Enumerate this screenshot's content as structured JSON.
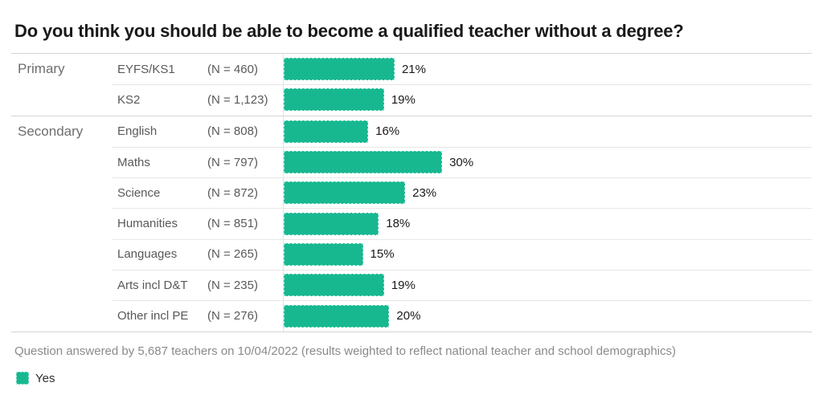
{
  "title": "Do you think you should be able to become a qualified teacher without a degree?",
  "footer": "Question answered by 5,687 teachers on 10/04/2022 (results weighted to reflect national teacher and school demographics)",
  "legend": [
    {
      "label": "Yes",
      "color": "#17b890"
    }
  ],
  "chart_data": {
    "type": "bar",
    "orientation": "horizontal",
    "title": "Do you think you should be able to become a qualified teacher without a degree?",
    "series_name": "Yes",
    "unit": "%",
    "xlim": [
      0,
      100
    ],
    "grid": false,
    "legend_position": "bottom-left",
    "colors": {
      "bar": "#17b890"
    },
    "groups": [
      {
        "group": "Primary",
        "rows": [
          {
            "label": "EYFS/KS1",
            "n_label": "(N = 460)",
            "value": 21,
            "value_label": "21%"
          },
          {
            "label": "KS2",
            "n_label": "(N = 1,123)",
            "value": 19,
            "value_label": "19%"
          }
        ]
      },
      {
        "group": "Secondary",
        "rows": [
          {
            "label": "English",
            "n_label": "(N = 808)",
            "value": 16,
            "value_label": "16%"
          },
          {
            "label": "Maths",
            "n_label": "(N = 797)",
            "value": 30,
            "value_label": "30%"
          },
          {
            "label": "Science",
            "n_label": "(N = 872)",
            "value": 23,
            "value_label": "23%"
          },
          {
            "label": "Humanities",
            "n_label": "(N = 851)",
            "value": 18,
            "value_label": "18%"
          },
          {
            "label": "Languages",
            "n_label": "(N = 265)",
            "value": 15,
            "value_label": "15%"
          },
          {
            "label": "Arts incl D&T",
            "n_label": "(N = 235)",
            "value": 19,
            "value_label": "19%"
          },
          {
            "label": "Other incl PE",
            "n_label": "(N = 276)",
            "value": 20,
            "value_label": "20%"
          }
        ]
      }
    ]
  }
}
